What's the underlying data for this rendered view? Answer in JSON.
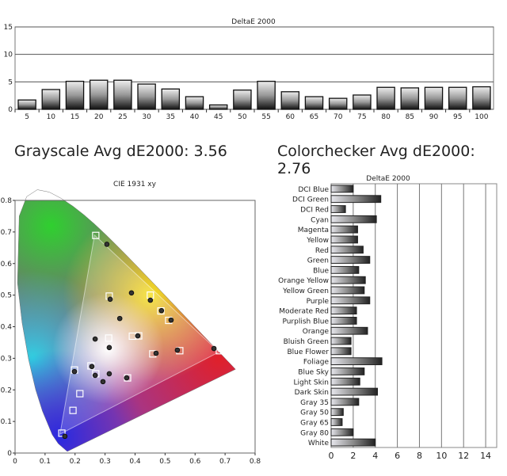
{
  "summary": {
    "grayscale_avg": "Grayscale Avg dE2000: 3.56",
    "colorchecker_avg": "Colorchecker Avg dE2000: 2.76"
  },
  "chart_data": [
    {
      "type": "bar",
      "title": "DeltaE 2000",
      "categories": [
        "5",
        "10",
        "15",
        "20",
        "25",
        "30",
        "35",
        "40",
        "45",
        "50",
        "55",
        "60",
        "65",
        "70",
        "75",
        "80",
        "85",
        "90",
        "95",
        "100"
      ],
      "values": [
        1.7,
        3.6,
        5.1,
        5.3,
        5.3,
        4.6,
        3.7,
        2.3,
        0.8,
        3.5,
        5.1,
        3.2,
        2.3,
        2.0,
        2.6,
        4.0,
        3.9,
        4.0,
        4.0,
        4.1
      ],
      "ylim": [
        0,
        15
      ],
      "yticks": [
        "0",
        "5",
        "10",
        "15"
      ],
      "grid": true
    },
    {
      "type": "scatter",
      "title": "CIE 1931 xy",
      "xlim": [
        0,
        0.8
      ],
      "ylim": [
        0,
        0.8
      ],
      "xticks": [
        "0",
        "0.1",
        "0.2",
        "0.3",
        "0.4",
        "0.5",
        "0.6",
        "0.7",
        "0.8"
      ],
      "yticks": [
        "0",
        "0.1",
        "0.2",
        "0.3",
        "0.4",
        "0.5",
        "0.6",
        "0.7",
        "0.8"
      ],
      "gamut_triangle": [
        [
          0.68,
          0.32
        ],
        [
          0.265,
          0.69
        ],
        [
          0.15,
          0.06
        ]
      ],
      "targets": [
        [
          0.269,
          0.689
        ],
        [
          0.314,
          0.497
        ],
        [
          0.451,
          0.5
        ],
        [
          0.486,
          0.45
        ],
        [
          0.512,
          0.42
        ],
        [
          0.412,
          0.371
        ],
        [
          0.391,
          0.37
        ],
        [
          0.459,
          0.314
        ],
        [
          0.549,
          0.324
        ],
        [
          0.681,
          0.324
        ],
        [
          0.312,
          0.364
        ],
        [
          0.253,
          0.276
        ],
        [
          0.269,
          0.251
        ],
        [
          0.198,
          0.263
        ],
        [
          0.375,
          0.238
        ],
        [
          0.216,
          0.188
        ],
        [
          0.193,
          0.135
        ],
        [
          0.156,
          0.063
        ]
      ],
      "measured": [
        [
          0.306,
          0.661
        ],
        [
          0.388,
          0.507
        ],
        [
          0.317,
          0.487
        ],
        [
          0.451,
          0.484
        ],
        [
          0.488,
          0.451
        ],
        [
          0.52,
          0.421
        ],
        [
          0.349,
          0.426
        ],
        [
          0.409,
          0.371
        ],
        [
          0.267,
          0.361
        ],
        [
          0.314,
          0.334
        ],
        [
          0.47,
          0.316
        ],
        [
          0.663,
          0.331
        ],
        [
          0.541,
          0.326
        ],
        [
          0.256,
          0.274
        ],
        [
          0.314,
          0.251
        ],
        [
          0.267,
          0.246
        ],
        [
          0.293,
          0.226
        ],
        [
          0.198,
          0.258
        ],
        [
          0.372,
          0.238
        ],
        [
          0.166,
          0.053
        ]
      ]
    },
    {
      "type": "bar",
      "orientation": "horizontal",
      "title": "DeltaE 2000",
      "categories": [
        "DCI Blue",
        "DCI Green",
        "DCI Red",
        "Cyan",
        "Magenta",
        "Yellow",
        "Red",
        "Green",
        "Blue",
        "Orange Yellow",
        "Yellow Green",
        "Purple",
        "Moderate Red",
        "Purplish Blue",
        "Orange",
        "Bluish Green",
        "Blue Flower",
        "Foliage",
        "Blue Sky",
        "Light Skin",
        "Dark Skin",
        "Gray 35",
        "Gray 50",
        "Gray 65",
        "Gray 80",
        "White"
      ],
      "values": [
        2.0,
        4.5,
        1.3,
        4.1,
        2.4,
        2.4,
        2.9,
        3.5,
        2.5,
        3.1,
        3.0,
        3.5,
        2.3,
        2.3,
        3.3,
        1.8,
        1.8,
        4.6,
        3.0,
        2.6,
        4.2,
        2.5,
        1.1,
        1.0,
        2.0,
        4.0
      ],
      "xlim": [
        0,
        15
      ],
      "xticks": [
        "0",
        "2",
        "4",
        "6",
        "8",
        "10",
        "12",
        "14"
      ]
    }
  ]
}
